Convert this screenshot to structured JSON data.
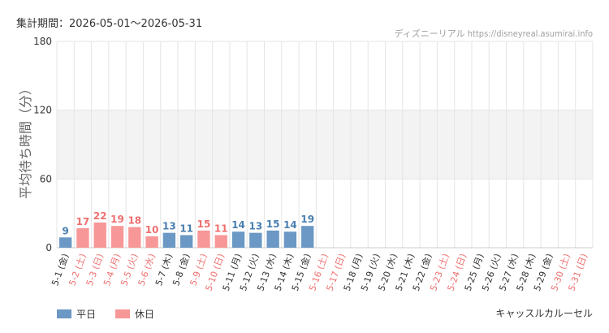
{
  "header": {
    "period": "集計期間：2026-05-01〜2026-05-31",
    "watermark": "ディズニーリアル https://disneyreal.asumirai.info"
  },
  "colors": {
    "weekday": "#6b98c4",
    "weekday_label": "#4a7fb0",
    "holiday": "#f89797",
    "holiday_label": "#ef7070",
    "band": "#f3f3f3",
    "grid": "#e5e5e5"
  },
  "legend": {
    "weekday": "平日",
    "holiday": "休日"
  },
  "attraction": "キャッスルカルーセル",
  "chart_data": {
    "type": "bar",
    "ylabel": "平均待ち時間（分）",
    "ylim": [
      0,
      180
    ],
    "yticks": [
      0,
      60,
      120,
      180
    ],
    "band": [
      60,
      120
    ],
    "categories": [
      "5-1 (金)",
      "5-2 (土)",
      "5-3 (日)",
      "5-4 (月)",
      "5-5 (火)",
      "5-6 (水)",
      "5-7 (木)",
      "5-8 (金)",
      "5-9 (土)",
      "5-10 (日)",
      "5-11 (月)",
      "5-12 (火)",
      "5-13 (水)",
      "5-14 (木)",
      "5-15 (金)",
      "5-16 (土)",
      "5-17 (日)",
      "5-18 (月)",
      "5-19 (火)",
      "5-20 (水)",
      "5-21 (木)",
      "5-22 (金)",
      "5-23 (土)",
      "5-24 (日)",
      "5-25 (月)",
      "5-26 (火)",
      "5-27 (水)",
      "5-28 (木)",
      "5-29 (金)",
      "5-30 (土)",
      "5-31 (日)"
    ],
    "values": [
      9,
      17,
      22,
      19,
      18,
      10,
      13,
      11,
      15,
      11,
      14,
      13,
      15,
      14,
      19,
      null,
      null,
      null,
      null,
      null,
      null,
      null,
      null,
      null,
      null,
      null,
      null,
      null,
      null,
      null,
      null
    ],
    "day_type": [
      "weekday",
      "holiday",
      "holiday",
      "holiday",
      "holiday",
      "holiday",
      "weekday",
      "weekday",
      "holiday",
      "holiday",
      "weekday",
      "weekday",
      "weekday",
      "weekday",
      "weekday",
      "holiday",
      "holiday",
      "weekday",
      "weekday",
      "weekday",
      "weekday",
      "weekday",
      "holiday",
      "holiday",
      "weekday",
      "weekday",
      "weekday",
      "weekday",
      "weekday",
      "holiday",
      "holiday"
    ]
  }
}
